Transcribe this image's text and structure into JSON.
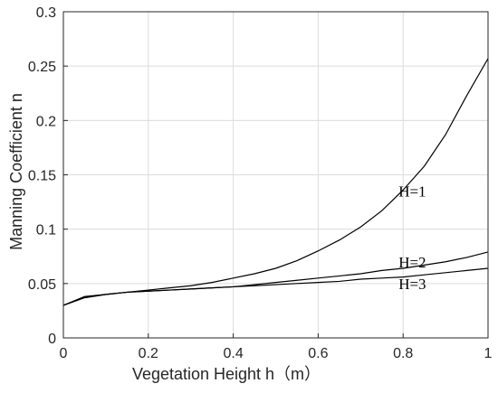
{
  "chart_data": {
    "type": "line",
    "title": "",
    "xlabel": "Vegetation Height h（m）",
    "ylabel": "Manning Coefficient n",
    "xlim": [
      0,
      1
    ],
    "ylim": [
      0,
      0.3
    ],
    "xticks": [
      "0",
      "0.2",
      "0.4",
      "0.6",
      "0.8",
      "1"
    ],
    "yticks": [
      "0",
      "0.05",
      "0.1",
      "0.15",
      "0.2",
      "0.25",
      "0.3"
    ],
    "grid": true,
    "x": [
      0,
      0.05,
      0.1,
      0.15,
      0.2,
      0.25,
      0.3,
      0.35,
      0.4,
      0.45,
      0.5,
      0.55,
      0.6,
      0.65,
      0.7,
      0.75,
      0.8,
      0.85,
      0.9,
      0.95,
      1.0
    ],
    "series": [
      {
        "name": "H=1",
        "label_at": [
          0.8,
          0.135
        ],
        "values": [
          0.03,
          0.038,
          0.04,
          0.042,
          0.044,
          0.046,
          0.048,
          0.051,
          0.055,
          0.059,
          0.064,
          0.071,
          0.08,
          0.09,
          0.102,
          0.117,
          0.136,
          0.158,
          0.187,
          0.223,
          0.257
        ]
      },
      {
        "name": "H=2",
        "label_at": [
          0.8,
          0.07
        ],
        "values": [
          0.03,
          0.037,
          0.04,
          0.042,
          0.043,
          0.044,
          0.045,
          0.046,
          0.047,
          0.049,
          0.051,
          0.053,
          0.055,
          0.057,
          0.059,
          0.062,
          0.064,
          0.067,
          0.07,
          0.074,
          0.079
        ]
      },
      {
        "name": "H=3",
        "label_at": [
          0.8,
          0.05
        ],
        "values": [
          0.03,
          0.037,
          0.04,
          0.042,
          0.043,
          0.044,
          0.045,
          0.046,
          0.047,
          0.048,
          0.049,
          0.05,
          0.051,
          0.052,
          0.054,
          0.055,
          0.056,
          0.058,
          0.06,
          0.062,
          0.064
        ]
      }
    ],
    "colors": {
      "line": "#000000",
      "grid": "#dcdcdc",
      "axis": "#262626"
    }
  }
}
